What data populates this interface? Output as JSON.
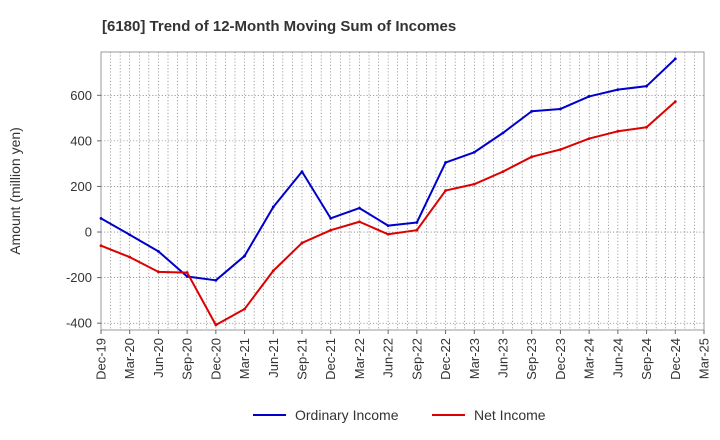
{
  "chart_data": {
    "type": "line",
    "title": "[6180]  Trend of 12-Month Moving Sum of Incomes",
    "xlabel": "",
    "ylabel": "Amount (million yen)",
    "categories": [
      "Dec-19",
      "Mar-20",
      "Jun-20",
      "Sep-20",
      "Dec-20",
      "Mar-21",
      "Jun-21",
      "Sep-21",
      "Dec-21",
      "Mar-22",
      "Jun-22",
      "Sep-22",
      "Dec-22",
      "Mar-23",
      "Jun-23",
      "Sep-23",
      "Dec-23",
      "Mar-24",
      "Jun-24",
      "Sep-24",
      "Dec-24",
      "Mar-25"
    ],
    "ylim": [
      -430,
      790
    ],
    "yticks": [
      -400,
      -200,
      0,
      200,
      400,
      600
    ],
    "ytick_labels": [
      "-400",
      "-200",
      "0",
      "200",
      "400",
      "600"
    ],
    "grid": true,
    "legend_position": "bottom-center",
    "series": [
      {
        "name": "Ordinary Income",
        "color": "#0000cc",
        "values": [
          60,
          -12,
          -85,
          -195,
          -212,
          -105,
          110,
          265,
          60,
          105,
          28,
          42,
          305,
          350,
          435,
          530,
          540,
          595,
          625,
          640,
          760,
          null
        ]
      },
      {
        "name": "Net Income",
        "color": "#dd0000",
        "values": [
          -60,
          -110,
          -175,
          -178,
          -408,
          -338,
          -170,
          -48,
          8,
          45,
          -10,
          8,
          182,
          210,
          265,
          330,
          362,
          410,
          442,
          460,
          572,
          null
        ]
      }
    ]
  }
}
